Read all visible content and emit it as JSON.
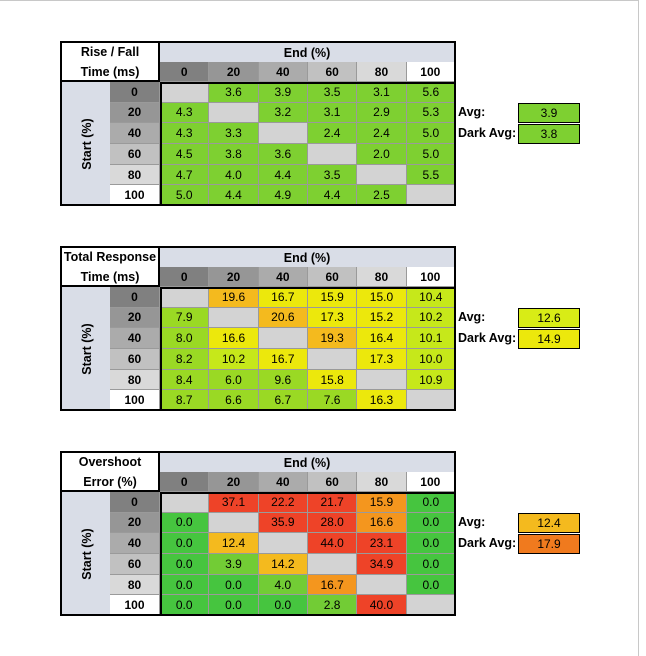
{
  "colors": {
    "header_bg": "#d9dde7",
    "diagonal": "#d3d3d3",
    "col_shades": [
      "#808080",
      "#969696",
      "#ababab",
      "#c1c1c1",
      "#d9d9d9",
      "#ffffff"
    ]
  },
  "tables": [
    {
      "title_lines": [
        "Rise / Fall",
        "Time (ms)"
      ],
      "end_label": "End (%)",
      "start_label": "Start (%)",
      "columns": [
        "0",
        "20",
        "40",
        "60",
        "80",
        "100"
      ],
      "rows": [
        "0",
        "20",
        "40",
        "60",
        "80",
        "100"
      ],
      "values": [
        [
          "",
          "3.6",
          "3.9",
          "3.5",
          "3.1",
          "5.6"
        ],
        [
          "4.3",
          "",
          "3.2",
          "3.1",
          "2.9",
          "5.3"
        ],
        [
          "4.3",
          "3.3",
          "",
          "2.4",
          "2.4",
          "5.0"
        ],
        [
          "4.5",
          "3.8",
          "3.6",
          "",
          "2.0",
          "5.0"
        ],
        [
          "4.7",
          "4.0",
          "4.4",
          "3.5",
          "",
          "5.5"
        ],
        [
          "5.0",
          "4.4",
          "4.9",
          "4.4",
          "2.5",
          ""
        ]
      ],
      "colors": [
        [
          "#d3d3d3",
          "#7ed031",
          "#7ed031",
          "#7ed031",
          "#7ed031",
          "#7ed031"
        ],
        [
          "#7ed031",
          "#d3d3d3",
          "#7ed031",
          "#7ed031",
          "#7ed031",
          "#7ed031"
        ],
        [
          "#7ed031",
          "#7ed031",
          "#d3d3d3",
          "#7ed031",
          "#7ed031",
          "#7ed031"
        ],
        [
          "#7ed031",
          "#7ed031",
          "#7ed031",
          "#d3d3d3",
          "#7ed031",
          "#7ed031"
        ],
        [
          "#7ed031",
          "#7ed031",
          "#7ed031",
          "#7ed031",
          "#d3d3d3",
          "#7ed031"
        ],
        [
          "#7ed031",
          "#7ed031",
          "#7ed031",
          "#7ed031",
          "#7ed031",
          "#d3d3d3"
        ]
      ],
      "avg_label": "Avg:",
      "avg_value": "3.9",
      "avg_color": "#7ed031",
      "dark_avg_label": "Dark Avg:",
      "dark_avg_value": "3.8",
      "dark_avg_color": "#7ed031"
    },
    {
      "title_lines": [
        "Total Response",
        "Time (ms)"
      ],
      "end_label": "End (%)",
      "start_label": "Start (%)",
      "columns": [
        "0",
        "20",
        "40",
        "60",
        "80",
        "100"
      ],
      "rows": [
        "0",
        "20",
        "40",
        "60",
        "80",
        "100"
      ],
      "values": [
        [
          "",
          "19.6",
          "16.7",
          "15.9",
          "15.0",
          "10.4"
        ],
        [
          "7.9",
          "",
          "20.6",
          "17.3",
          "15.2",
          "10.2"
        ],
        [
          "8.0",
          "16.6",
          "",
          "19.3",
          "16.4",
          "10.1"
        ],
        [
          "8.2",
          "10.2",
          "16.7",
          "",
          "17.3",
          "10.0"
        ],
        [
          "8.4",
          "6.0",
          "9.6",
          "15.8",
          "",
          "10.9"
        ],
        [
          "8.7",
          "6.6",
          "6.7",
          "7.6",
          "16.3",
          ""
        ]
      ],
      "colors": [
        [
          "#d3d3d3",
          "#f4ba1e",
          "#ece80c",
          "#ece80c",
          "#ece80c",
          "#c6e81a"
        ],
        [
          "#9ad924",
          "#d3d3d3",
          "#f4ba1e",
          "#ece80c",
          "#ece80c",
          "#c6e81a"
        ],
        [
          "#9ad924",
          "#ece80c",
          "#d3d3d3",
          "#f4ba1e",
          "#ece80c",
          "#c6e81a"
        ],
        [
          "#9ad924",
          "#c6e81a",
          "#ece80c",
          "#d3d3d3",
          "#ece80c",
          "#c6e81a"
        ],
        [
          "#9ad924",
          "#9ad924",
          "#9ad924",
          "#ece80c",
          "#d3d3d3",
          "#c6e81a"
        ],
        [
          "#9ad924",
          "#9ad924",
          "#9ad924",
          "#9ad924",
          "#ece80c",
          "#d3d3d3"
        ]
      ],
      "avg_label": "Avg:",
      "avg_value": "12.6",
      "avg_color": "#d8ec16",
      "dark_avg_label": "Dark Avg:",
      "dark_avg_value": "14.9",
      "dark_avg_color": "#ece80c"
    },
    {
      "title_lines": [
        "Overshoot",
        "Error (%)"
      ],
      "end_label": "End (%)",
      "start_label": "Start (%)",
      "columns": [
        "0",
        "20",
        "40",
        "60",
        "80",
        "100"
      ],
      "rows": [
        "0",
        "20",
        "40",
        "60",
        "80",
        "100"
      ],
      "values": [
        [
          "",
          "37.1",
          "22.2",
          "21.7",
          "15.9",
          "0.0"
        ],
        [
          "0.0",
          "",
          "35.9",
          "28.0",
          "16.6",
          "0.0"
        ],
        [
          "0.0",
          "12.4",
          "",
          "44.0",
          "23.1",
          "0.0"
        ],
        [
          "0.0",
          "3.9",
          "14.2",
          "",
          "34.9",
          "0.0"
        ],
        [
          "0.0",
          "0.0",
          "4.0",
          "16.7",
          "",
          "0.0"
        ],
        [
          "0.0",
          "0.0",
          "0.0",
          "2.8",
          "40.0",
          ""
        ]
      ],
      "colors": [
        [
          "#d3d3d3",
          "#ee4328",
          "#ee4328",
          "#ee4328",
          "#f4961e",
          "#46c53f"
        ],
        [
          "#46c53f",
          "#d3d3d3",
          "#ee4328",
          "#ee4328",
          "#f4961e",
          "#46c53f"
        ],
        [
          "#46c53f",
          "#f4ba1e",
          "#d3d3d3",
          "#ee4328",
          "#ee4328",
          "#46c53f"
        ],
        [
          "#46c53f",
          "#72cc35",
          "#f4ba1e",
          "#d3d3d3",
          "#ee4328",
          "#46c53f"
        ],
        [
          "#46c53f",
          "#46c53f",
          "#72cc35",
          "#f4961e",
          "#d3d3d3",
          "#46c53f"
        ],
        [
          "#46c53f",
          "#46c53f",
          "#46c53f",
          "#72cc35",
          "#ee4328",
          "#d3d3d3"
        ]
      ],
      "avg_label": "Avg:",
      "avg_value": "12.4",
      "avg_color": "#f4ba1e",
      "dark_avg_label": "Dark Avg:",
      "dark_avg_value": "17.9",
      "dark_avg_color": "#f07a1e"
    }
  ]
}
